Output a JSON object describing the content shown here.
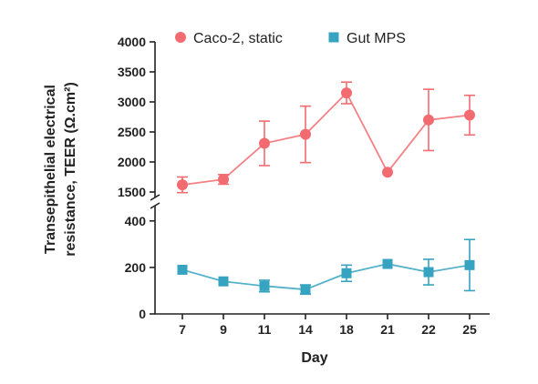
{
  "chart_data": {
    "type": "line",
    "xlabel": "Day",
    "ylabel_line1": "Transepithelial electrical",
    "ylabel_line2": "resistance, TEER (Ω.cm²)",
    "categories": [
      "7",
      "9",
      "11",
      "14",
      "18",
      "21",
      "22",
      "25"
    ],
    "broken_y_axis": true,
    "upper_ylim": [
      1500,
      4000
    ],
    "upper_yticks": [
      "1500",
      "2000",
      "2500",
      "3000",
      "3500",
      "4000"
    ],
    "lower_ylim": [
      0,
      450
    ],
    "lower_yticks": [
      "0",
      "200",
      "400"
    ],
    "legend_position": "top",
    "series": [
      {
        "name": "Caco-2, static",
        "color": "#f26b70",
        "marker": "circle",
        "values": [
          1620,
          1710,
          2310,
          2460,
          3150,
          1830,
          2700,
          2780
        ],
        "errors": [
          130,
          80,
          370,
          470,
          180,
          0,
          510,
          330
        ]
      },
      {
        "name": "Gut MPS",
        "color": "#36a3c0",
        "marker": "square",
        "values": [
          190,
          140,
          120,
          105,
          175,
          215,
          180,
          210
        ],
        "errors": [
          0,
          0,
          25,
          20,
          35,
          0,
          55,
          110
        ]
      }
    ]
  }
}
